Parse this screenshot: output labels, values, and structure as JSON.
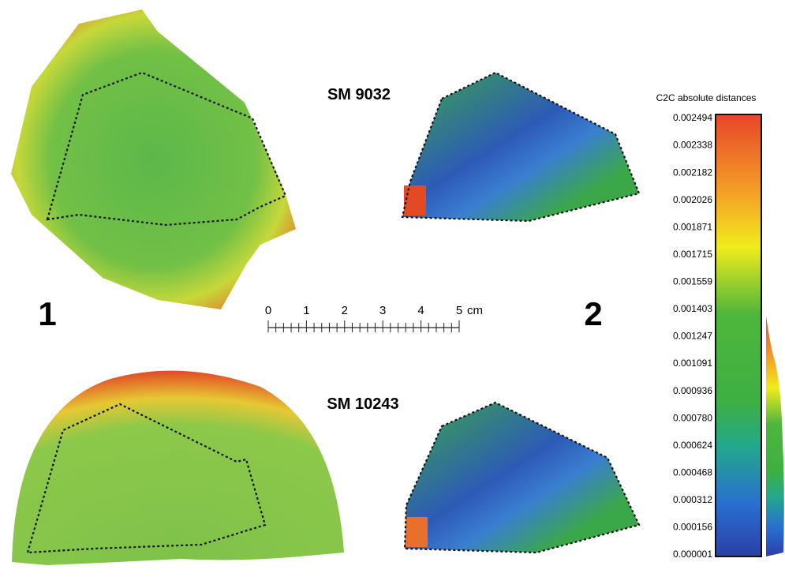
{
  "labels": {
    "top": "SM 9032",
    "bottom": "SM 10243",
    "panel_left": "1",
    "panel_right": "2"
  },
  "scale_bar": {
    "ticks": [
      "0",
      "1",
      "2",
      "3",
      "4",
      "5"
    ],
    "unit": "cm"
  },
  "colorbar": {
    "title": "C2C absolute distances",
    "ticks": [
      "0.002494",
      "0.002338",
      "0.002182",
      "0.002026",
      "0.001871",
      "0.001715",
      "0.001559",
      "0.001403",
      "0.001247",
      "0.001091",
      "0.000936",
      "0.000780",
      "0.000624",
      "0.000468",
      "0.000312",
      "0.000156",
      "0.000001"
    ]
  }
}
